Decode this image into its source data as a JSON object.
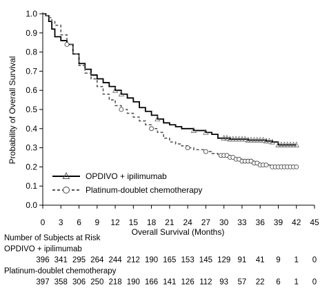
{
  "chart_data": {
    "type": "line",
    "title": "",
    "xlabel": "Overall Survival (Months)",
    "ylabel": "Probability of Overall Survival",
    "xlim": [
      0,
      45
    ],
    "ylim": [
      0.0,
      1.0
    ],
    "xticks": [
      "0",
      "3",
      "6",
      "9",
      "12",
      "15",
      "18",
      "21",
      "24",
      "27",
      "30",
      "33",
      "36",
      "39",
      "42",
      "45"
    ],
    "yticks": [
      "0.0",
      "0.1",
      "0.2",
      "0.3",
      "0.4",
      "0.5",
      "0.6",
      "0.7",
      "0.8",
      "0.9",
      "1.0"
    ],
    "grid": false,
    "legend_position": "lower-left",
    "series": [
      {
        "name": "OPDIVO + ipilimumab",
        "style": "solid",
        "marker": "triangle",
        "color": "#000000",
        "x": [
          0,
          0.5,
          1,
          1.5,
          2,
          3,
          4,
          5,
          6,
          7,
          8,
          9,
          10,
          11,
          12,
          13,
          14,
          15,
          16,
          17,
          18,
          19,
          20,
          21,
          22,
          23,
          24,
          25,
          26,
          27,
          28,
          29,
          30,
          31,
          32,
          33,
          34,
          35,
          36,
          37,
          38,
          39,
          40,
          41,
          42
        ],
        "y": [
          1.0,
          0.99,
          0.96,
          0.92,
          0.88,
          0.86,
          0.84,
          0.79,
          0.74,
          0.71,
          0.68,
          0.66,
          0.64,
          0.62,
          0.6,
          0.58,
          0.56,
          0.54,
          0.51,
          0.49,
          0.47,
          0.45,
          0.43,
          0.42,
          0.41,
          0.4,
          0.4,
          0.39,
          0.39,
          0.38,
          0.37,
          0.35,
          0.35,
          0.345,
          0.345,
          0.345,
          0.34,
          0.34,
          0.34,
          0.335,
          0.33,
          0.315,
          0.315,
          0.315,
          0.315
        ]
      },
      {
        "name": "Platinum-doublet chemotherapy",
        "style": "dashed",
        "marker": "circle",
        "color": "#555555",
        "x": [
          0,
          0.5,
          1,
          1.5,
          2,
          3,
          4,
          5,
          6,
          7,
          8,
          9,
          10,
          11,
          12,
          13,
          14,
          15,
          16,
          17,
          18,
          19,
          20,
          21,
          22,
          23,
          24,
          25,
          26,
          27,
          28,
          29,
          30,
          31,
          32,
          33,
          34,
          35,
          36,
          37,
          38,
          39,
          40,
          41,
          42
        ],
        "y": [
          1.0,
          0.99,
          0.98,
          0.96,
          0.94,
          0.89,
          0.84,
          0.79,
          0.73,
          0.69,
          0.66,
          0.62,
          0.58,
          0.55,
          0.52,
          0.5,
          0.48,
          0.46,
          0.44,
          0.42,
          0.4,
          0.38,
          0.35,
          0.33,
          0.32,
          0.31,
          0.3,
          0.29,
          0.29,
          0.28,
          0.27,
          0.26,
          0.26,
          0.25,
          0.24,
          0.23,
          0.23,
          0.22,
          0.21,
          0.21,
          0.2,
          0.2,
          0.2,
          0.2,
          0.2
        ]
      }
    ],
    "risk_table": {
      "title": "Number of Subjects at Risk",
      "timepoints": [
        0,
        3,
        6,
        9,
        12,
        15,
        18,
        21,
        24,
        27,
        30,
        33,
        36,
        39,
        42,
        45
      ],
      "rows": [
        {
          "label": "OPDIVO + ipilimumab",
          "counts": [
            "396",
            "341",
            "295",
            "264",
            "244",
            "212",
            "190",
            "165",
            "153",
            "145",
            "129",
            "91",
            "41",
            "9",
            "1",
            "0"
          ]
        },
        {
          "label": "Platinum-doublet chemotherapy",
          "counts": [
            "397",
            "358",
            "306",
            "250",
            "218",
            "190",
            "166",
            "141",
            "126",
            "112",
            "93",
            "57",
            "22",
            "6",
            "1",
            "0"
          ]
        }
      ]
    }
  }
}
